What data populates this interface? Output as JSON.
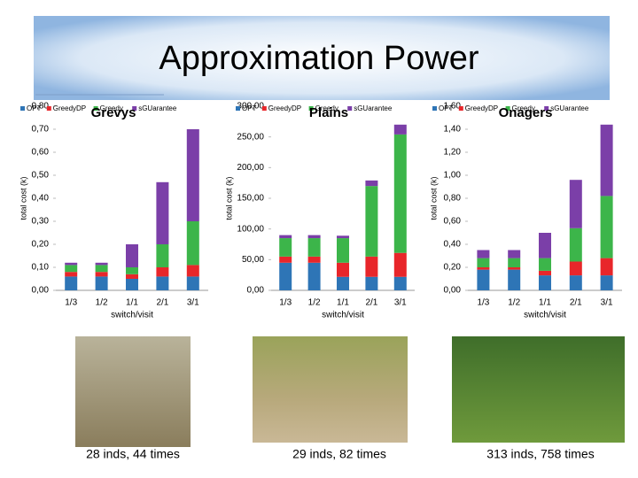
{
  "title": "Approximation Power",
  "chart_data": [
    {
      "type": "bar",
      "stacked": true,
      "title": "Grevys",
      "xlabel": "switch/visit",
      "ylabel": "total cost (k)",
      "categories": [
        "1/3",
        "1/2",
        "1/1",
        "2/1",
        "3/1"
      ],
      "series": [
        {
          "name": "OPT",
          "color": "#2e75b6",
          "values": [
            0.06,
            0.06,
            0.05,
            0.06,
            0.06
          ]
        },
        {
          "name": "GreedyDP",
          "color": "#e8262a",
          "values": [
            0.02,
            0.02,
            0.02,
            0.04,
            0.05
          ]
        },
        {
          "name": "Greedy",
          "color": "#3cb54a",
          "values": [
            0.03,
            0.03,
            0.03,
            0.1,
            0.19
          ]
        },
        {
          "name": "sGUarantee",
          "color": "#7b3fa8",
          "values": [
            0.01,
            0.01,
            0.1,
            0.27,
            0.4
          ]
        }
      ],
      "ylim": [
        0,
        0.8
      ],
      "yticks": [
        {
          "value": 0,
          "label": "0,00"
        },
        {
          "value": 0.1,
          "label": "0,10"
        },
        {
          "value": 0.2,
          "label": "0,20"
        },
        {
          "value": 0.3,
          "label": "0,30"
        },
        {
          "value": 0.4,
          "label": "0,40"
        },
        {
          "value": 0.5,
          "label": "0,50"
        },
        {
          "value": 0.6,
          "label": "0,60"
        },
        {
          "value": 0.7,
          "label": "0,70"
        },
        {
          "value": 0.8,
          "label": "0,80"
        }
      ],
      "caption": "28 inds, 44 times"
    },
    {
      "type": "bar",
      "stacked": true,
      "title": "Plains",
      "xlabel": "switch/visit",
      "ylabel": "total cost (k)",
      "categories": [
        "1/3",
        "1/2",
        "1/1",
        "2/1",
        "3/1"
      ],
      "series": [
        {
          "name": "OPT",
          "color": "#2e75b6",
          "values": [
            45,
            45,
            22,
            22,
            22
          ]
        },
        {
          "name": "GreedyDP",
          "color": "#e8262a",
          "values": [
            10,
            10,
            23,
            33,
            39
          ]
        },
        {
          "name": "Greedy",
          "color": "#3cb54a",
          "values": [
            30,
            30,
            40,
            115,
            193
          ]
        },
        {
          "name": "sGUarantee",
          "color": "#7b3fa8",
          "values": [
            5,
            5,
            4,
            9,
            16
          ]
        }
      ],
      "ylim": [
        0,
        300
      ],
      "yticks": [
        {
          "value": 0,
          "label": "0,00"
        },
        {
          "value": 50,
          "label": "50,00"
        },
        {
          "value": 100,
          "label": "100,00"
        },
        {
          "value": 150,
          "label": "150,00"
        },
        {
          "value": 200,
          "label": "200,00"
        },
        {
          "value": 250,
          "label": "250,00"
        },
        {
          "value": 300,
          "label": "300,00"
        }
      ],
      "caption": "29 inds, 82 times"
    },
    {
      "type": "bar",
      "stacked": true,
      "title": "Onagers",
      "xlabel": "switch/visit",
      "ylabel": "total cost (k)",
      "categories": [
        "1/3",
        "1/2",
        "1/1",
        "2/1",
        "3/1"
      ],
      "series": [
        {
          "name": "OPT",
          "color": "#2e75b6",
          "values": [
            0.18,
            0.18,
            0.13,
            0.13,
            0.13
          ]
        },
        {
          "name": "GreedyDP",
          "color": "#e8262a",
          "values": [
            0.02,
            0.02,
            0.04,
            0.12,
            0.15
          ]
        },
        {
          "name": "Greedy",
          "color": "#3cb54a",
          "values": [
            0.08,
            0.08,
            0.11,
            0.29,
            0.54
          ]
        },
        {
          "name": "sGUarantee",
          "color": "#7b3fa8",
          "values": [
            0.07,
            0.07,
            0.22,
            0.42,
            0.62
          ]
        }
      ],
      "ylim": [
        0,
        1.6
      ],
      "yticks": [
        {
          "value": 0,
          "label": "0,00"
        },
        {
          "value": 0.2,
          "label": "0,20"
        },
        {
          "value": 0.4,
          "label": "0,40"
        },
        {
          "value": 0.6,
          "label": "0,60"
        },
        {
          "value": 0.8,
          "label": "0,80"
        },
        {
          "value": 1.0,
          "label": "1,00"
        },
        {
          "value": 1.2,
          "label": "1,20"
        },
        {
          "value": 1.4,
          "label": "1,40"
        },
        {
          "value": 1.6,
          "label": "1,60"
        }
      ],
      "caption": "313 inds, 758 times"
    }
  ]
}
